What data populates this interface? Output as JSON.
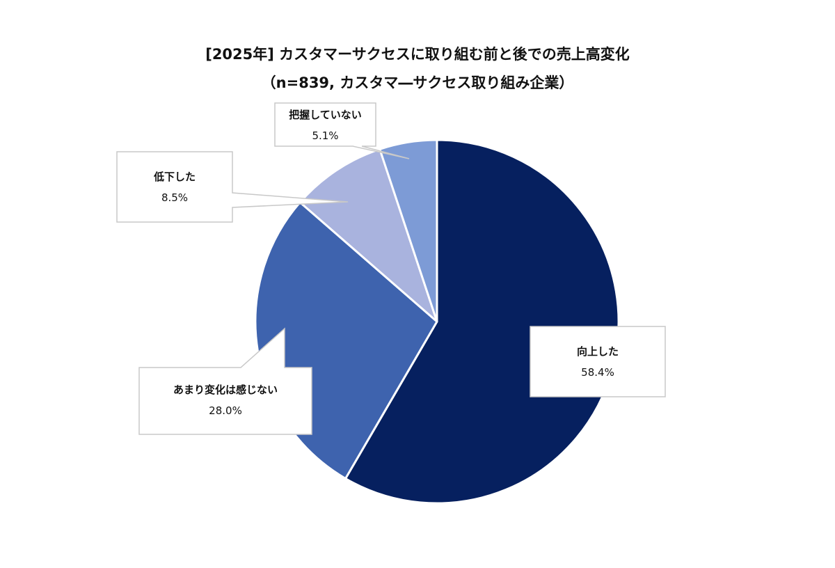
{
  "title": "[2025年] カスタマーサクセスに取り組む前と後での売上高変化",
  "subtitle": "（n=839, カスタマ―サクセス取り組み企業）",
  "chart_data": {
    "type": "pie",
    "title": "[2025年] カスタマーサクセスに取り組む前と後での売上高変化",
    "subtitle": "（n=839, カスタマ―サクセス取り組み企業）",
    "categories": [
      "向上した",
      "あまり変化は感じない",
      "低下した",
      "把握していない"
    ],
    "values": [
      58.4,
      28.0,
      8.5,
      5.1
    ],
    "unit": "%",
    "colors": [
      "#06205f",
      "#3e63ae",
      "#a9b3de",
      "#7d9bd6"
    ],
    "start_angle": "12 o'clock, clockwise",
    "legend": "callout labels"
  },
  "labels": [
    {
      "name": "向上した",
      "value": "58.4%"
    },
    {
      "name": "あまり変化は感じない",
      "value": "28.0%"
    },
    {
      "name": "低下した",
      "value": "8.5%"
    },
    {
      "name": "把握していない",
      "value": "5.1%"
    }
  ]
}
